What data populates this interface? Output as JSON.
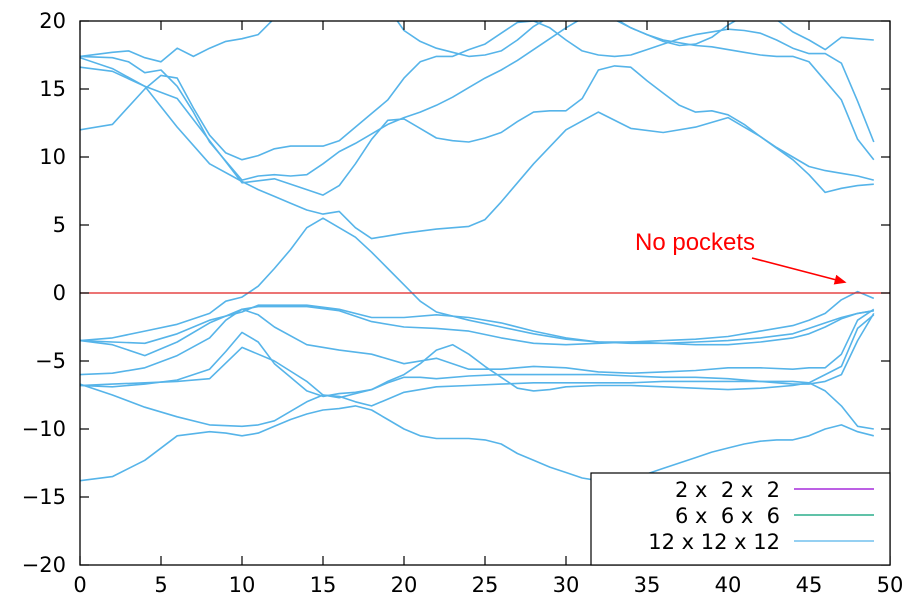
{
  "chart_data": {
    "type": "line",
    "title": "",
    "xlabel": "",
    "ylabel": "",
    "xlim": [
      0,
      50
    ],
    "ylim": [
      -20,
      20
    ],
    "x_ticks": [
      0,
      5,
      10,
      15,
      20,
      25,
      30,
      35,
      40,
      45,
      50
    ],
    "y_ticks": [
      -20,
      -15,
      -10,
      -5,
      0,
      5,
      10,
      15,
      20
    ],
    "x_tick_labels": [
      "0",
      "5",
      "10",
      "15",
      "20",
      "25",
      "30",
      "35",
      "40",
      "45",
      "50"
    ],
    "y_tick_labels": [
      "−20",
      "−15",
      "−10",
      "−5",
      "0",
      "5",
      "10",
      "15",
      "20"
    ],
    "grid": false,
    "legend_position": "bottom-right",
    "legend": [
      {
        "name": "2 x  2 x  2",
        "color": "#9400D3"
      },
      {
        "name": "6 x  6 x  6",
        "color": "#009E73"
      },
      {
        "name": "12 x 12 x 12",
        "color": "#56B4E9"
      }
    ],
    "line_color": "#56B4E9",
    "fermi_level": {
      "y": 0,
      "color": "#e02020"
    },
    "annotation": {
      "text": "No pockets",
      "color": "#ff0000",
      "arrow_to": [
        47.2,
        0.8
      ]
    },
    "bands": [
      {
        "x": [
          0,
          2,
          4,
          6,
          8,
          9,
          10,
          11,
          12,
          13,
          14,
          15,
          16,
          17,
          18,
          19,
          20,
          21,
          22,
          23,
          24,
          25,
          26,
          27,
          28,
          29,
          30,
          31,
          32,
          33,
          34,
          35,
          36,
          37,
          38,
          39,
          40,
          41,
          42,
          43,
          44,
          45,
          46,
          47,
          48,
          49
        ],
        "y": [
          -13.8,
          -13.5,
          -12.3,
          -10.5,
          -10.2,
          -10.3,
          -10.5,
          -10.3,
          -9.8,
          -9.3,
          -8.9,
          -8.6,
          -8.5,
          -8.3,
          -8.6,
          -9.3,
          -10,
          -10.5,
          -10.7,
          -10.7,
          -10.7,
          -10.8,
          -11.1,
          -11.8,
          -12.3,
          -12.8,
          -13.2,
          -13.6,
          -13.8,
          -13.8,
          -13.6,
          -13.3,
          -12.9,
          -12.5,
          -12.1,
          -11.7,
          -11.4,
          -11.1,
          -10.9,
          -10.8,
          -10.8,
          -10.5,
          -10,
          -9.7,
          -10.2,
          -10.5
        ]
      },
      {
        "x": [
          0,
          2,
          4,
          6,
          8,
          10,
          11,
          12,
          13,
          14,
          15,
          16,
          17,
          18,
          19,
          20,
          22,
          24,
          26,
          28,
          30,
          32,
          34,
          36,
          38,
          40,
          42,
          44,
          45,
          46,
          47,
          48,
          49
        ],
        "y": [
          -6.7,
          -7.5,
          -8.4,
          -9.1,
          -9.7,
          -9.8,
          -9.7,
          -9.4,
          -8.7,
          -8.0,
          -7.5,
          -7.6,
          -8.0,
          -8.3,
          -7.8,
          -7.3,
          -6.9,
          -6.8,
          -6.7,
          -6.6,
          -6.6,
          -6.6,
          -6.6,
          -6.5,
          -6.5,
          -6.5,
          -6.5,
          -6.5,
          -6.6,
          -7.2,
          -8.3,
          -9.8,
          -10.0
        ]
      },
      {
        "x": [
          0,
          2,
          4,
          6,
          8,
          10,
          12,
          14,
          15,
          16,
          17,
          18,
          19,
          20,
          21,
          22,
          24,
          26,
          28,
          30,
          32,
          34,
          36,
          38,
          40,
          42,
          44,
          45,
          46,
          47,
          48,
          49
        ],
        "y": [
          -6.8,
          -6.7,
          -6.6,
          -6.5,
          -6.3,
          -4.0,
          -5.0,
          -6.5,
          -7.5,
          -7.7,
          -7.4,
          -7.1,
          -6.6,
          -6.2,
          -6.2,
          -6.3,
          -6.1,
          -6.0,
          -6.0,
          -6.0,
          -6.0,
          -6.1,
          -6.2,
          -6.2,
          -6.3,
          -6.5,
          -6.7,
          -6.7,
          -6.5,
          -6.0,
          -3.5,
          -1.5
        ]
      },
      {
        "x": [
          0,
          2,
          4,
          6,
          8,
          9,
          10,
          11,
          12,
          13,
          14,
          15,
          16,
          17,
          18,
          19,
          20,
          21,
          22,
          23,
          24,
          25,
          26,
          27,
          28,
          29,
          30,
          32,
          34,
          36,
          38,
          40,
          42,
          44,
          45,
          46,
          47,
          48,
          49
        ],
        "y": [
          -6.8,
          -6.9,
          -6.7,
          -6.4,
          -5.6,
          -4.3,
          -2.9,
          -3.6,
          -5.2,
          -6.2,
          -7.2,
          -7.6,
          -7.4,
          -7.3,
          -7.1,
          -6.5,
          -6.0,
          -5.2,
          -4.2,
          -3.8,
          -4.5,
          -5.4,
          -6.2,
          -7.0,
          -7.2,
          -7.1,
          -6.9,
          -6.8,
          -6.8,
          -6.9,
          -7.0,
          -7.1,
          -7.0,
          -6.8,
          -6.6,
          -6.0,
          -5.4,
          -2.6,
          -1.6
        ]
      },
      {
        "x": [
          0,
          2,
          4,
          6,
          8,
          9,
          10,
          11,
          12,
          14,
          16,
          18,
          20,
          22,
          24,
          26,
          28,
          30,
          32,
          34,
          36,
          38,
          40,
          42,
          44,
          45,
          46,
          47,
          48,
          49
        ],
        "y": [
          -6.0,
          -5.9,
          -5.5,
          -4.6,
          -3.3,
          -2.0,
          -1.2,
          -1.6,
          -2.5,
          -3.8,
          -4.2,
          -4.5,
          -5.2,
          -4.8,
          -5.6,
          -5.6,
          -5.4,
          -5.5,
          -5.8,
          -5.9,
          -5.8,
          -5.7,
          -5.5,
          -5.5,
          -5.6,
          -5.5,
          -5.5,
          -4.5,
          -2.0,
          -1.2
        ]
      },
      {
        "x": [
          0,
          2,
          4,
          6,
          8,
          10,
          11,
          12,
          14,
          16,
          18,
          20,
          22,
          24,
          26,
          28,
          30,
          32,
          34,
          36,
          38,
          40,
          42,
          44,
          45,
          46,
          47,
          48,
          49
        ],
        "y": [
          -3.5,
          -3.8,
          -4.6,
          -3.6,
          -2.2,
          -1.2,
          -1.0,
          -1.0,
          -1.0,
          -1.3,
          -2.1,
          -2.5,
          -2.6,
          -2.8,
          -3.3,
          -3.7,
          -3.8,
          -3.7,
          -3.6,
          -3.7,
          -3.8,
          -3.8,
          -3.6,
          -3.3,
          -3.0,
          -2.5,
          -1.9,
          -1.5,
          -1.3
        ]
      },
      {
        "x": [
          0,
          2,
          4,
          6,
          8,
          10,
          11,
          12,
          14,
          16,
          18,
          20,
          22,
          24,
          26,
          28,
          30,
          32,
          34,
          36,
          38,
          40,
          42,
          44,
          45,
          46,
          47,
          48,
          49
        ],
        "y": [
          -3.5,
          -3.6,
          -3.7,
          -3.0,
          -2.0,
          -1.4,
          -0.9,
          -0.9,
          -0.9,
          -1.2,
          -1.8,
          -1.8,
          -1.6,
          -1.8,
          -2.2,
          -2.8,
          -3.3,
          -3.6,
          -3.6,
          -3.5,
          -3.4,
          -3.2,
          -2.8,
          -2.4,
          -2.0,
          -1.5,
          -0.5,
          0.1,
          -0.4
        ]
      },
      {
        "x": [
          0,
          2,
          4,
          6,
          8,
          9,
          10,
          11,
          12,
          13,
          14,
          15,
          16,
          17,
          18,
          19,
          20,
          21,
          22,
          24,
          26,
          28,
          30,
          32,
          34,
          36,
          38,
          40,
          42,
          44,
          45,
          46,
          47,
          48,
          49
        ],
        "y": [
          -3.5,
          -3.3,
          -2.8,
          -2.3,
          -1.5,
          -0.6,
          -0.3,
          0.5,
          1.8,
          3.2,
          4.8,
          5.5,
          4.8,
          4.1,
          3.0,
          1.8,
          0.6,
          -0.6,
          -1.4,
          -2.0,
          -2.5,
          -3.0,
          -3.4,
          -3.6,
          -3.7,
          -3.7,
          -3.6,
          -3.5,
          -3.3,
          -3.0,
          -2.6,
          -2.2,
          -1.8,
          -1.5,
          -1.3
        ]
      },
      {
        "x": [
          0,
          2,
          4,
          6,
          8,
          10,
          11,
          12,
          13,
          14,
          15,
          16,
          17,
          18,
          19,
          20,
          22,
          24,
          25,
          26,
          28,
          30,
          32,
          34,
          36,
          38,
          40,
          42,
          44,
          45,
          46,
          47,
          48,
          49
        ],
        "y": [
          17.3,
          16.5,
          15.2,
          12.2,
          9.5,
          8.2,
          7.6,
          7.1,
          6.6,
          6.1,
          5.8,
          6.0,
          4.8,
          4.0,
          4.2,
          4.4,
          4.7,
          4.9,
          5.4,
          6.7,
          9.5,
          12.0,
          13.3,
          12.1,
          11.8,
          12.2,
          12.9,
          11.5,
          9.8,
          8.7,
          7.4,
          7.7,
          7.9,
          8.0
        ]
      },
      {
        "x": [
          0,
          2,
          4,
          6,
          8,
          10,
          12,
          14,
          15,
          16,
          17,
          18,
          19,
          20,
          21,
          22,
          23,
          24,
          25,
          26,
          27,
          28,
          29,
          30,
          31,
          32,
          33,
          34,
          35,
          36,
          37,
          38,
          39,
          40,
          41,
          42,
          43,
          44,
          45,
          46,
          47,
          48,
          49
        ],
        "y": [
          16.6,
          16.3,
          15.2,
          14.3,
          11.2,
          8.1,
          8.4,
          7.6,
          7.2,
          7.9,
          9.5,
          11.3,
          12.7,
          12.8,
          12.1,
          11.4,
          11.2,
          11.1,
          11.4,
          11.8,
          12.6,
          13.3,
          13.4,
          13.4,
          14.3,
          16.4,
          16.7,
          16.6,
          15.6,
          14.7,
          13.8,
          13.3,
          13.4,
          13.1,
          12.4,
          11.5,
          10.7,
          10.0,
          9.3,
          9.0,
          8.8,
          8.6,
          8.3
        ]
      },
      {
        "x": [
          0,
          2,
          4,
          5,
          6,
          7,
          8,
          9,
          10,
          11,
          12,
          13,
          14,
          15,
          16,
          17,
          18,
          19,
          20,
          21,
          22,
          23,
          24,
          25,
          26,
          27,
          28,
          29,
          30,
          31,
          32,
          33,
          34,
          35,
          36,
          37,
          38,
          39,
          40,
          41,
          42,
          43,
          44,
          45,
          46,
          47,
          48,
          49
        ],
        "y": [
          12.0,
          12.4,
          15.0,
          16.0,
          15.8,
          13.6,
          11.6,
          10.3,
          9.8,
          10.1,
          10.6,
          10.8,
          10.8,
          10.8,
          11.2,
          12.2,
          13.2,
          14.2,
          15.8,
          17.0,
          17.4,
          17.4,
          17.9,
          18.3,
          19.1,
          19.9,
          20.0,
          19.5,
          18.6,
          17.8,
          17.5,
          17.4,
          17.5,
          17.9,
          18.3,
          18.7,
          19.0,
          19.2,
          19.4,
          19.3,
          19.1,
          18.6,
          18.0,
          17.6,
          17.6,
          16.9,
          14.1,
          11.1
        ]
      },
      {
        "x": [
          0,
          2,
          3,
          4,
          5,
          6,
          7,
          8,
          9,
          10,
          11,
          12,
          13,
          14,
          15,
          16,
          17,
          18,
          19,
          20,
          21,
          22,
          23,
          24,
          25,
          26,
          27,
          28,
          29,
          30,
          31,
          32,
          33,
          34,
          35,
          36,
          37,
          38,
          39,
          40,
          41,
          42,
          43,
          44,
          45,
          46,
          47,
          48,
          49
        ],
        "y": [
          17.4,
          17.3,
          17.0,
          16.2,
          16.4,
          15.2,
          13.3,
          11.1,
          9.7,
          8.3,
          8.6,
          8.7,
          8.6,
          8.7,
          9.5,
          10.4,
          11.0,
          11.7,
          12.4,
          12.9,
          13.3,
          13.8,
          14.4,
          15.1,
          15.8,
          16.4,
          17.1,
          17.9,
          18.7,
          19.5,
          20.2,
          20.5,
          20.1,
          19.5,
          19.0,
          18.6,
          18.4,
          18.2,
          18.1,
          17.9,
          17.7,
          17.5,
          17.4,
          17.4,
          17.0,
          15.6,
          14.2,
          11.3,
          9.8
        ]
      },
      {
        "x": [
          0,
          2,
          3,
          4,
          5,
          6,
          7,
          8,
          9,
          10,
          11,
          12,
          13,
          14,
          15,
          16,
          17,
          18,
          19,
          20,
          21,
          22,
          23,
          24,
          25,
          26,
          27,
          28,
          29,
          30,
          31,
          32,
          33,
          34,
          35,
          36,
          37,
          38,
          39,
          40,
          41,
          42,
          43,
          44,
          45,
          46,
          47,
          48,
          49
        ],
        "y": [
          17.4,
          17.7,
          17.8,
          17.3,
          17.0,
          18.0,
          17.4,
          18.0,
          18.5,
          18.7,
          19.0,
          20.2,
          21.0,
          21.8,
          22.5,
          22.5,
          22.3,
          21.9,
          21.0,
          19.3,
          18.5,
          18.0,
          17.7,
          17.4,
          17.5,
          17.8,
          18.6,
          19.6,
          20.3,
          20.6,
          20.8,
          20.7,
          20.2,
          19.5,
          19.0,
          18.5,
          18.2,
          18.3,
          18.8,
          19.7,
          20.4,
          20.6,
          20.1,
          19.2,
          18.6,
          17.9,
          18.8,
          18.7,
          18.6
        ]
      }
    ]
  }
}
